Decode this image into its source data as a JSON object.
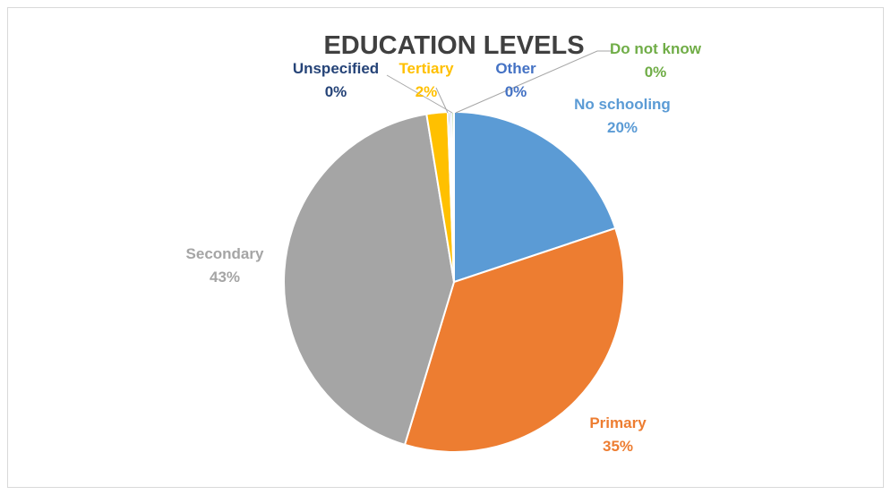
{
  "chart_data": {
    "type": "pie",
    "title": "EDUCATION LEVELS",
    "slices": [
      {
        "label": "No schooling",
        "value": 20,
        "value_text": "20%",
        "color": "#5b9bd5"
      },
      {
        "label": "Primary",
        "value": 35,
        "value_text": "35%",
        "color": "#ed7d31"
      },
      {
        "label": "Secondary",
        "value": 43,
        "value_text": "43%",
        "color": "#a5a5a5"
      },
      {
        "label": "Tertiary",
        "value": 2,
        "value_text": "2%",
        "color": "#ffc000"
      },
      {
        "label": "Unspecified",
        "value": 0.2,
        "value_text": "0%",
        "color": "#264478"
      },
      {
        "label": "Other",
        "value": 0.2,
        "value_text": "0%",
        "color": "#4472c4"
      },
      {
        "label": "Do not know",
        "value": 0.2,
        "value_text": "0%",
        "color": "#70ad47"
      }
    ],
    "legend": "none",
    "labels": "outside"
  }
}
